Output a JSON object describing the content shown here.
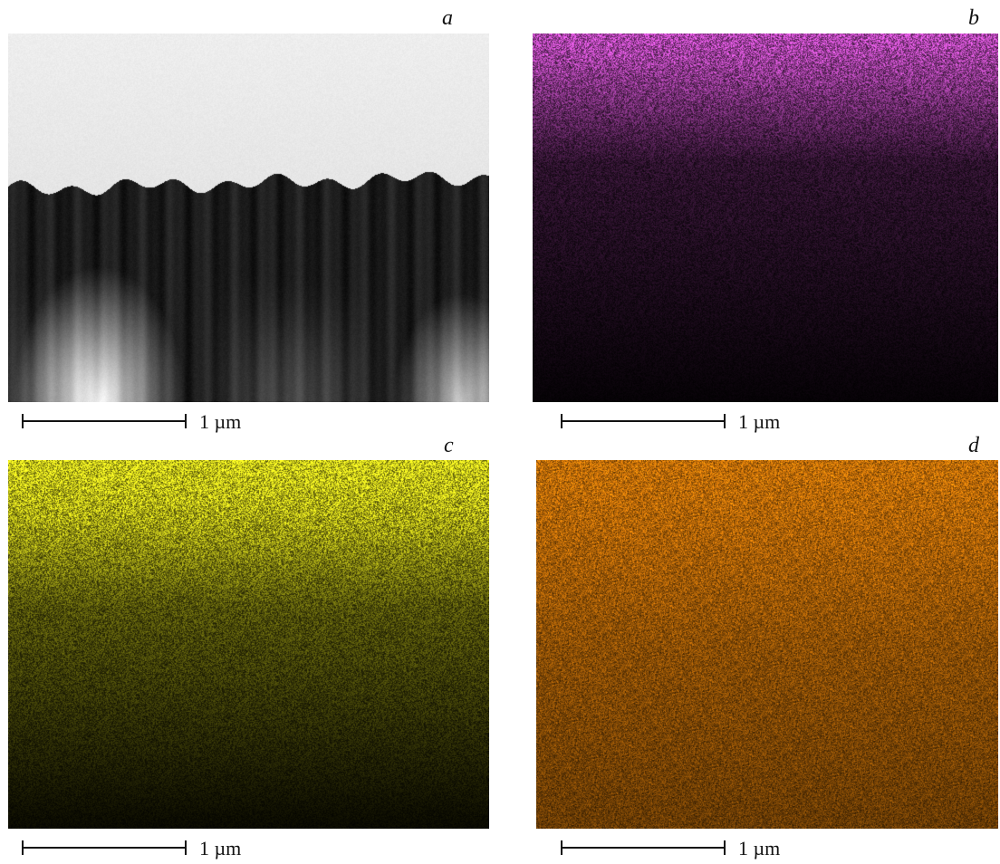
{
  "figure": {
    "panels": [
      {
        "label": "a",
        "scale_text": "1 µm",
        "colormap": "grayscale"
      },
      {
        "label": "b",
        "scale_text": "1 µm",
        "colormap": "magenta",
        "color": "#c850c8"
      },
      {
        "label": "c",
        "scale_text": "1 µm",
        "colormap": "yellow",
        "color": "#e6e61e"
      },
      {
        "label": "d",
        "scale_text": "1 µm",
        "colormap": "orange",
        "color": "#e6820a"
      }
    ]
  }
}
